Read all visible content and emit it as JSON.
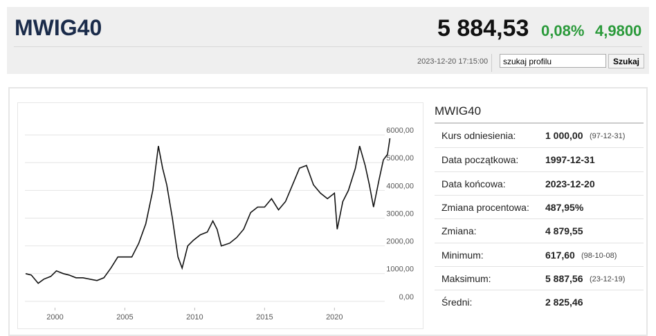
{
  "header": {
    "title": "MWIG40",
    "price": "5 884,53",
    "change_pct": "0,08%",
    "change": "4,9800",
    "timestamp": "2023-12-20 17:15:00",
    "search_placeholder": "szukaj profilu",
    "search_button": "Szukaj"
  },
  "chart_data": {
    "type": "line",
    "x": [
      1997.9,
      1998.3,
      1998.8,
      1999.2,
      1999.7,
      2000.1,
      2000.6,
      2001.0,
      2001.5,
      2002.0,
      2002.5,
      2003.0,
      2003.5,
      2004.0,
      2004.5,
      2005.0,
      2005.5,
      2006.0,
      2006.5,
      2007.0,
      2007.4,
      2007.7,
      2008.0,
      2008.4,
      2008.8,
      2009.1,
      2009.5,
      2009.9,
      2010.4,
      2010.9,
      2011.3,
      2011.6,
      2011.9,
      2012.5,
      2013.0,
      2013.5,
      2014.0,
      2014.5,
      2015.0,
      2015.5,
      2016.0,
      2016.5,
      2017.0,
      2017.5,
      2018.0,
      2018.5,
      2019.0,
      2019.5,
      2020.0,
      2020.2,
      2020.6,
      2021.0,
      2021.5,
      2021.8,
      2022.2,
      2022.5,
      2022.8,
      2023.2,
      2023.5,
      2023.8,
      2023.97
    ],
    "series": [
      {
        "color": "#111111",
        "values": [
          1000,
          950,
          650,
          800,
          900,
          1100,
          1000,
          950,
          850,
          850,
          800,
          750,
          850,
          1200,
          1600,
          1600,
          1600,
          2100,
          2800,
          4000,
          5600,
          4800,
          4200,
          3000,
          1600,
          1200,
          2000,
          2200,
          2400,
          2500,
          2900,
          2600,
          2000,
          2100,
          2300,
          2600,
          3200,
          3400,
          3400,
          3700,
          3300,
          3600,
          4200,
          4800,
          4900,
          4200,
          3900,
          3700,
          3900,
          2600,
          3600,
          4000,
          4800,
          5600,
          4900,
          4200,
          3400,
          4400,
          5100,
          5300,
          5880
        ]
      }
    ],
    "xlim": [
      1997.5,
      2023.6
    ],
    "ylim": [
      -500,
      7100
    ],
    "xticks": [
      2000,
      2005,
      2010,
      2015,
      2020
    ],
    "yticks": [
      {
        "value": 0,
        "label": "0,00"
      },
      {
        "value": 1000,
        "label": "1000,00"
      },
      {
        "value": 2000,
        "label": "2000,00"
      },
      {
        "value": 3000,
        "label": "3000,00"
      },
      {
        "value": 4000,
        "label": "4000,00"
      },
      {
        "value": 5000,
        "label": "5000,00"
      },
      {
        "value": 6000,
        "label": "6000,00"
      }
    ],
    "grid": true
  },
  "profile": {
    "title": "MWIG40",
    "rows": [
      {
        "label": "Kurs odniesienia:",
        "value": "1 000,00",
        "note": "(97-12-31)"
      },
      {
        "label": "Data początkowa:",
        "value": "1997-12-31"
      },
      {
        "label": "Data końcowa:",
        "value": "2023-12-20"
      },
      {
        "label": "Zmiana procentowa:",
        "value": "487,95%"
      },
      {
        "label": "Zmiana:",
        "value": "4 879,55"
      },
      {
        "label": "Minimum:",
        "value": "617,60",
        "note": "(98-10-08)"
      },
      {
        "label": "Maksimum:",
        "value": "5 887,56",
        "note": "(23-12-19)"
      },
      {
        "label": "Średni:",
        "value": "2 825,46"
      }
    ]
  }
}
